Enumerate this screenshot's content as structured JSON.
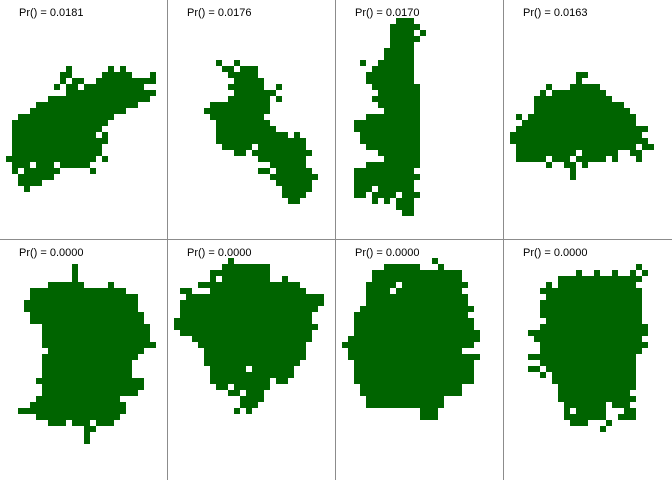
{
  "panels": [
    {
      "label": "Pr() = 0.0181"
    },
    {
      "label": "Pr() = 0.0176"
    },
    {
      "label": "Pr() = 0.0170"
    },
    {
      "label": "Pr() = 0.0163"
    },
    {
      "label": "Pr() = 0.0000"
    },
    {
      "label": "Pr() = 0.0000"
    },
    {
      "label": "Pr() = 0.0000"
    },
    {
      "label": "Pr() = 0.0000"
    }
  ],
  "colors": {
    "shape": "#006400",
    "divider": "#8c8c8c"
  }
}
